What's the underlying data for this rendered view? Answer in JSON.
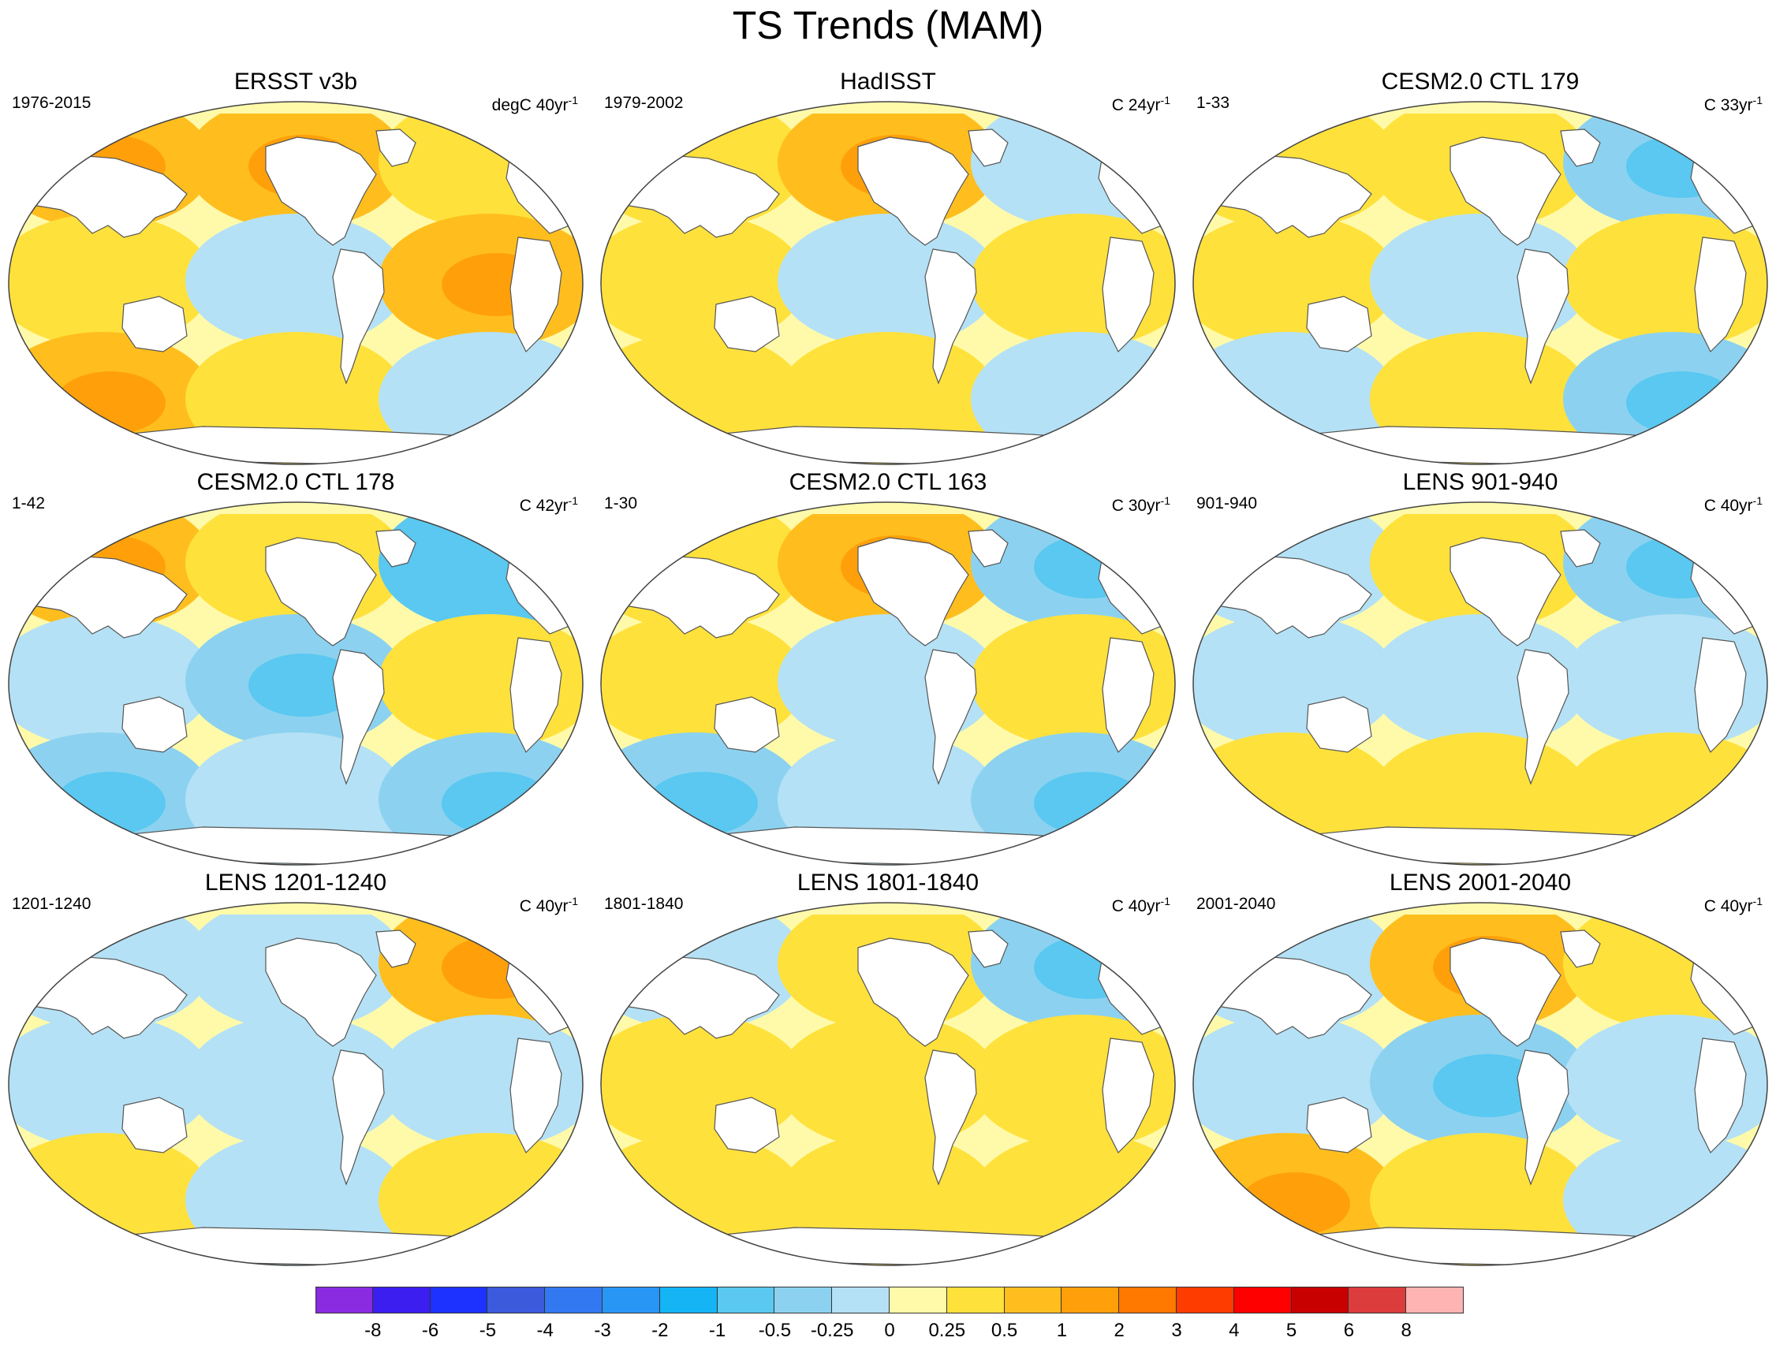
{
  "title": "TS Trends (MAM)",
  "panels": [
    {
      "title": "ERSST v3b",
      "period": "1976-2015",
      "units": "degC 40yr",
      "units_exp": "-1",
      "pattern": [
        2,
        2,
        1,
        1,
        -1,
        2,
        2,
        1,
        -1
      ]
    },
    {
      "title": "HadISST",
      "period": "1979-2002",
      "units": "C 24yr",
      "units_exp": "-1",
      "pattern": [
        1,
        2,
        -1,
        1,
        -1,
        1,
        1,
        1,
        -1
      ]
    },
    {
      "title": "CESM2.0 CTL 179",
      "period": "1-33",
      "units": "C 33yr",
      "units_exp": "-1",
      "pattern": [
        1,
        1,
        -2,
        1,
        -1,
        1,
        -1,
        1,
        -2
      ]
    },
    {
      "title": "CESM2.0 CTL 178",
      "period": "1-42",
      "units": "C 42yr",
      "units_exp": "-1",
      "pattern": [
        2,
        1,
        -3,
        -1,
        -2,
        1,
        -2,
        -1,
        -2
      ]
    },
    {
      "title": "CESM2.0 CTL 163",
      "period": "1-30",
      "units": "C 30yr",
      "units_exp": "-1",
      "pattern": [
        1,
        2,
        -2,
        1,
        -1,
        1,
        -2,
        -1,
        -2
      ]
    },
    {
      "title": "LENS 901-940",
      "period": "901-940",
      "units": "C 40yr",
      "units_exp": "-1",
      "pattern": [
        -1,
        1,
        -2,
        -1,
        -1,
        -1,
        1,
        1,
        1
      ]
    },
    {
      "title": "LENS 1201-1240",
      "period": "1201-1240",
      "units": "C 40yr",
      "units_exp": "-1",
      "pattern": [
        -1,
        -1,
        2,
        -1,
        -1,
        -1,
        1,
        -1,
        1
      ]
    },
    {
      "title": "LENS 1801-1840",
      "period": "1801-1840",
      "units": "C 40yr",
      "units_exp": "-1",
      "pattern": [
        -1,
        1,
        -2,
        1,
        1,
        1,
        1,
        1,
        1
      ]
    },
    {
      "title": "LENS 2001-2040",
      "period": "2001-2040",
      "units": "C 40yr",
      "units_exp": "-1",
      "pattern": [
        -1,
        2,
        1,
        -1,
        -2,
        -1,
        2,
        1,
        -1
      ]
    }
  ],
  "colorbar": {
    "colors": [
      "#8a2be2",
      "#3c1ef0",
      "#1e32ff",
      "#3c5adc",
      "#3278f0",
      "#2896f5",
      "#14b4f5",
      "#5ac8f0",
      "#8cd2f0",
      "#b4e1f5",
      "#fffaaa",
      "#ffe13c",
      "#ffbe1e",
      "#ffa00a",
      "#ff7800",
      "#ff3c00",
      "#ff0000",
      "#c80000",
      "#dc3c3c",
      "#ffb4b4"
    ],
    "labels": [
      "-8",
      "-6",
      "-5",
      "-4",
      "-3",
      "-2",
      "-1",
      "-0.5",
      "-0.25",
      "0",
      "0.25",
      "0.5",
      "1",
      "2",
      "3",
      "4",
      "5",
      "6",
      "8"
    ]
  }
}
